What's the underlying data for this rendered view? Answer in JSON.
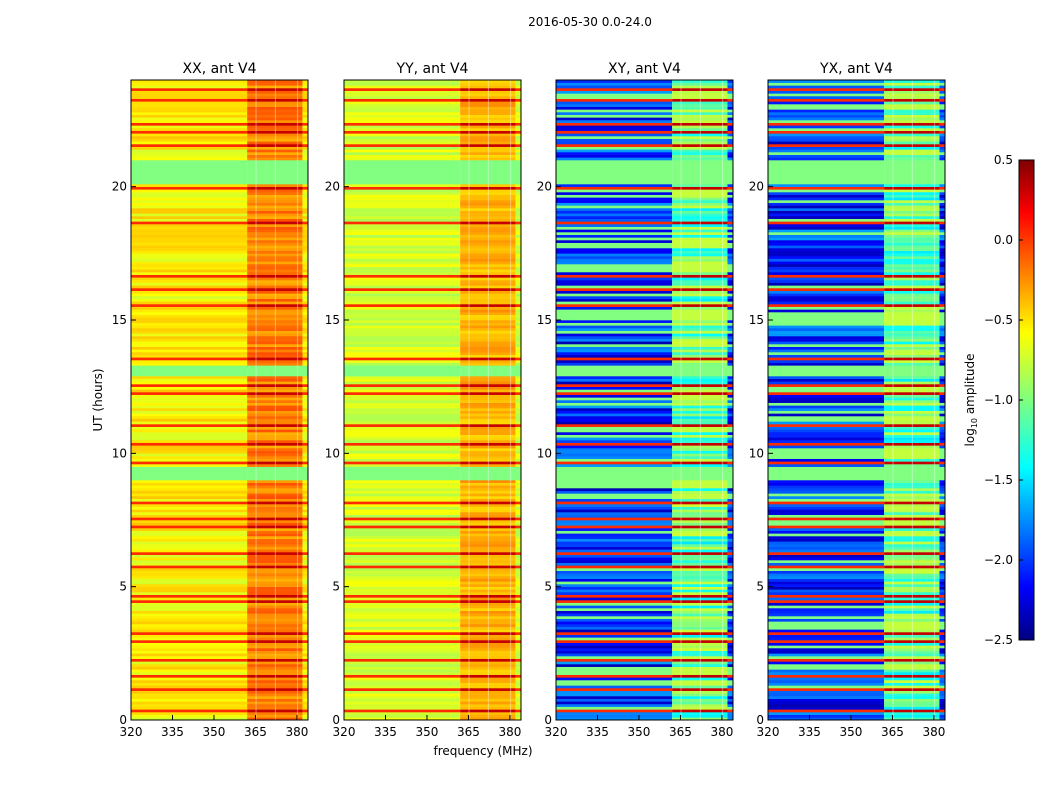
{
  "chart_data": {
    "type": "heatmap",
    "title": "2016-05-30 0.0-24.0",
    "xlabel": "frequency (MHz)",
    "ylabel": "UT (hours)",
    "xlim": [
      320,
      384
    ],
    "ylim": [
      0,
      24
    ],
    "xticks": [
      "320",
      "335",
      "350",
      "365",
      "380"
    ],
    "yticks": [
      "0",
      "5",
      "10",
      "15",
      "20"
    ],
    "colormap": "jet",
    "colorbar": {
      "label_main": "log",
      "label_sub": "10",
      "label_rest": " amplitude",
      "vmin": -2.5,
      "vmax": 0.5,
      "ticks": [
        "0.5",
        "0.0",
        "−0.5",
        "−1.0",
        "−1.5",
        "−2.0",
        "−2.5"
      ],
      "tick_values": [
        0.5,
        0.0,
        -0.5,
        -1.0,
        -1.5,
        -2.0,
        -2.5
      ]
    },
    "rfi_band_mhz": [
      362,
      382
    ],
    "rfi_rows_ut": [
      0.3,
      1.1,
      1.6,
      2.2,
      2.9,
      3.2,
      4.4,
      4.6,
      5.7,
      6.2,
      7.2,
      7.5,
      8.1,
      9.6,
      10.3,
      11.0,
      12.2,
      12.5,
      13.5,
      15.5,
      16.1,
      16.6,
      18.6,
      19.9,
      21.5,
      22.0,
      22.3,
      23.2,
      23.6
    ],
    "flagged_blocks_ut": [
      [
        20.1,
        21.0
      ],
      [
        12.9,
        13.3
      ],
      [
        9.0,
        9.5
      ]
    ],
    "panels": [
      {
        "title": "XX, ant V4",
        "base": -0.6,
        "band": -0.25,
        "noise": 0.15
      },
      {
        "title": "YY, ant V4",
        "base": -0.75,
        "band": -0.4,
        "noise": 0.12
      },
      {
        "title": "XY, ant V4",
        "base": -2.0,
        "band": -1.1,
        "noise": 0.35
      },
      {
        "title": "YX, ant V4",
        "base": -2.0,
        "band": -1.1,
        "noise": 0.35
      }
    ]
  }
}
